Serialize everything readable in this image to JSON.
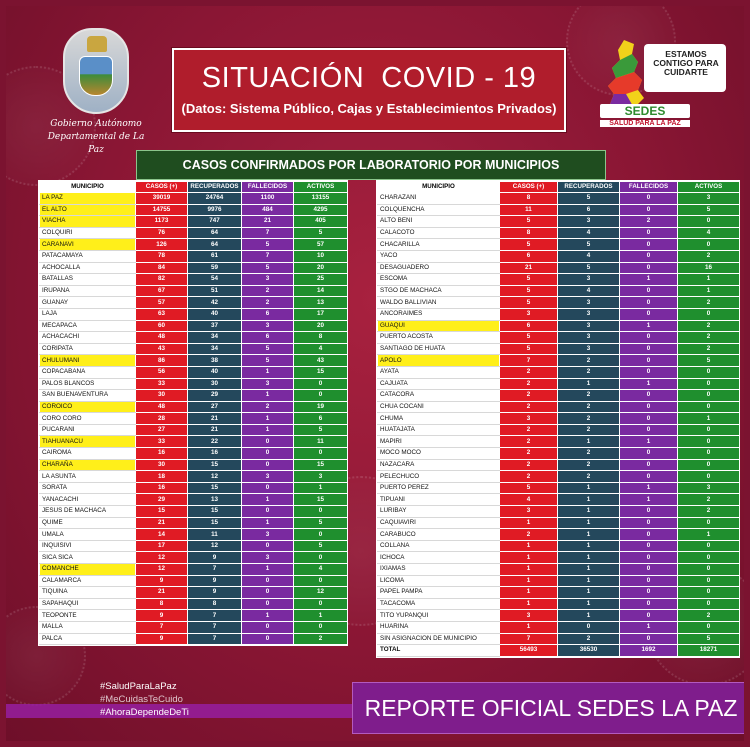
{
  "header": {
    "title": "SITUACIÓN  COVID - 19",
    "subtitle": "(Datos: Sistema Público, Cajas y Establecimientos Privados)",
    "subtitle_bar": "CASOS CONFIRMADOS POR LABORATORIO POR MUNICIPIOS"
  },
  "logo_left": {
    "line1": "Gobierno Autónomo",
    "line2": "Departamental de La Paz"
  },
  "logo_right": {
    "slogan": "ESTAMOS CONTIGO PARA CUIDARTE",
    "sedes": "SEDES",
    "sedes_sub": "SALUD PARA LA PAZ"
  },
  "columns": [
    "MUNICIPIO",
    "CASOS (+)",
    "RECUPERADOS",
    "FALLECIDOS",
    "ACTIVOS"
  ],
  "left_table": [
    {
      "m": "LA PAZ",
      "c": "39019",
      "r": "24764",
      "f": "1100",
      "a": "13155",
      "hl": true
    },
    {
      "m": "EL ALTO",
      "c": "14755",
      "r": "9976",
      "f": "484",
      "a": "4295",
      "hl": true
    },
    {
      "m": "VIACHA",
      "c": "1173",
      "r": "747",
      "f": "21",
      "a": "405",
      "hl": true
    },
    {
      "m": "COLQUIRI",
      "c": "76",
      "r": "64",
      "f": "7",
      "a": "5",
      "hl": false
    },
    {
      "m": "CARANAVI",
      "c": "126",
      "r": "64",
      "f": "5",
      "a": "57",
      "hl": true
    },
    {
      "m": "PATACAMAYA",
      "c": "78",
      "r": "61",
      "f": "7",
      "a": "10",
      "hl": false
    },
    {
      "m": "ACHOCALLA",
      "c": "84",
      "r": "59",
      "f": "5",
      "a": "20",
      "hl": false
    },
    {
      "m": "BATALLAS",
      "c": "82",
      "r": "54",
      "f": "3",
      "a": "25",
      "hl": false
    },
    {
      "m": "IRUPANA",
      "c": "67",
      "r": "51",
      "f": "2",
      "a": "14",
      "hl": false
    },
    {
      "m": "GUANAY",
      "c": "57",
      "r": "42",
      "f": "2",
      "a": "13",
      "hl": false
    },
    {
      "m": "LAJA",
      "c": "63",
      "r": "40",
      "f": "6",
      "a": "17",
      "hl": false
    },
    {
      "m": "MECAPACA",
      "c": "60",
      "r": "37",
      "f": "3",
      "a": "20",
      "hl": false
    },
    {
      "m": "ACHACACHI",
      "c": "48",
      "r": "34",
      "f": "6",
      "a": "8",
      "hl": false
    },
    {
      "m": "CORIPATA",
      "c": "43",
      "r": "34",
      "f": "5",
      "a": "4",
      "hl": false
    },
    {
      "m": "CHULUMANI",
      "c": "86",
      "r": "38",
      "f": "5",
      "a": "43",
      "hl": true
    },
    {
      "m": "COPACABANA",
      "c": "56",
      "r": "40",
      "f": "1",
      "a": "15",
      "hl": false
    },
    {
      "m": "PALOS BLANCOS",
      "c": "33",
      "r": "30",
      "f": "3",
      "a": "0",
      "hl": false
    },
    {
      "m": "SAN BUENAVENTURA",
      "c": "30",
      "r": "29",
      "f": "1",
      "a": "0",
      "hl": false
    },
    {
      "m": "COROICO",
      "c": "48",
      "r": "27",
      "f": "2",
      "a": "19",
      "hl": true
    },
    {
      "m": "CORO CORO",
      "c": "28",
      "r": "21",
      "f": "1",
      "a": "6",
      "hl": false
    },
    {
      "m": "PUCARANI",
      "c": "27",
      "r": "21",
      "f": "1",
      "a": "5",
      "hl": false
    },
    {
      "m": "TIAHUANACU",
      "c": "33",
      "r": "22",
      "f": "0",
      "a": "11",
      "hl": true
    },
    {
      "m": "CAIROMA",
      "c": "16",
      "r": "16",
      "f": "0",
      "a": "0",
      "hl": false
    },
    {
      "m": "CHARAÑA",
      "c": "30",
      "r": "15",
      "f": "0",
      "a": "15",
      "hl": true
    },
    {
      "m": "LA ASUNTA",
      "c": "18",
      "r": "12",
      "f": "3",
      "a": "3",
      "hl": false
    },
    {
      "m": "SORATA",
      "c": "16",
      "r": "15",
      "f": "0",
      "a": "1",
      "hl": false
    },
    {
      "m": "YANACACHI",
      "c": "29",
      "r": "13",
      "f": "1",
      "a": "15",
      "hl": false
    },
    {
      "m": "JESUS DE MACHACA",
      "c": "15",
      "r": "15",
      "f": "0",
      "a": "0",
      "hl": false
    },
    {
      "m": "QUIME",
      "c": "21",
      "r": "15",
      "f": "1",
      "a": "5",
      "hl": false
    },
    {
      "m": "UMALA",
      "c": "14",
      "r": "11",
      "f": "3",
      "a": "0",
      "hl": false
    },
    {
      "m": "INQUISIVI",
      "c": "17",
      "r": "12",
      "f": "0",
      "a": "5",
      "hl": false
    },
    {
      "m": "SICA SICA",
      "c": "12",
      "r": "9",
      "f": "3",
      "a": "0",
      "hl": false
    },
    {
      "m": "COMANCHE",
      "c": "12",
      "r": "7",
      "f": "1",
      "a": "4",
      "hl": true
    },
    {
      "m": "CALAMARCA",
      "c": "9",
      "r": "9",
      "f": "0",
      "a": "0",
      "hl": false
    },
    {
      "m": "TIQUINA",
      "c": "21",
      "r": "9",
      "f": "0",
      "a": "12",
      "hl": false
    },
    {
      "m": "SAPAHAQUI",
      "c": "8",
      "r": "8",
      "f": "0",
      "a": "0",
      "hl": false
    },
    {
      "m": "TEOPONTE",
      "c": "9",
      "r": "7",
      "f": "1",
      "a": "1",
      "hl": false
    },
    {
      "m": "MALLA",
      "c": "7",
      "r": "7",
      "f": "0",
      "a": "0",
      "hl": false
    },
    {
      "m": "PALCA",
      "c": "9",
      "r": "7",
      "f": "0",
      "a": "2",
      "hl": false
    }
  ],
  "right_table": [
    {
      "m": "CHARAZANI",
      "c": "8",
      "r": "5",
      "f": "0",
      "a": "3",
      "hl": false
    },
    {
      "m": "COLQUENCHA",
      "c": "11",
      "r": "6",
      "f": "0",
      "a": "5",
      "hl": false
    },
    {
      "m": "ALTO BENI",
      "c": "5",
      "r": "3",
      "f": "2",
      "a": "0",
      "hl": false
    },
    {
      "m": "CALACOTO",
      "c": "8",
      "r": "4",
      "f": "0",
      "a": "4",
      "hl": false
    },
    {
      "m": "CHACARILLA",
      "c": "5",
      "r": "5",
      "f": "0",
      "a": "0",
      "hl": false
    },
    {
      "m": "YACO",
      "c": "6",
      "r": "4",
      "f": "0",
      "a": "2",
      "hl": false
    },
    {
      "m": "DESAGUADERO",
      "c": "21",
      "r": "5",
      "f": "0",
      "a": "16",
      "hl": false
    },
    {
      "m": "ESCOMA",
      "c": "5",
      "r": "3",
      "f": "1",
      "a": "1",
      "hl": false
    },
    {
      "m": "STGO DE MACHACA",
      "c": "5",
      "r": "4",
      "f": "0",
      "a": "1",
      "hl": false
    },
    {
      "m": "WALDO BALLIVIAN",
      "c": "5",
      "r": "3",
      "f": "0",
      "a": "2",
      "hl": false
    },
    {
      "m": "ANCORAIMES",
      "c": "3",
      "r": "3",
      "f": "0",
      "a": "0",
      "hl": false
    },
    {
      "m": "GUAQUI",
      "c": "6",
      "r": "3",
      "f": "1",
      "a": "2",
      "hl": true
    },
    {
      "m": "PUERTO ACOSTA",
      "c": "5",
      "r": "3",
      "f": "0",
      "a": "2",
      "hl": false
    },
    {
      "m": "SANTIAGO DE HUATA",
      "c": "5",
      "r": "3",
      "f": "0",
      "a": "2",
      "hl": false
    },
    {
      "m": "APOLO",
      "c": "7",
      "r": "2",
      "f": "0",
      "a": "5",
      "hl": true
    },
    {
      "m": "AYATA",
      "c": "2",
      "r": "2",
      "f": "0",
      "a": "0",
      "hl": false
    },
    {
      "m": "CAJUATA",
      "c": "2",
      "r": "1",
      "f": "1",
      "a": "0",
      "hl": false
    },
    {
      "m": "CATACORA",
      "c": "2",
      "r": "2",
      "f": "0",
      "a": "0",
      "hl": false
    },
    {
      "m": "CHUA COCANI",
      "c": "2",
      "r": "2",
      "f": "0",
      "a": "0",
      "hl": false
    },
    {
      "m": "CHUMA",
      "c": "3",
      "r": "2",
      "f": "0",
      "a": "1",
      "hl": false
    },
    {
      "m": "HUATAJATA",
      "c": "2",
      "r": "2",
      "f": "0",
      "a": "0",
      "hl": false
    },
    {
      "m": "MAPIRI",
      "c": "2",
      "r": "1",
      "f": "1",
      "a": "0",
      "hl": false
    },
    {
      "m": "MOCO MOCO",
      "c": "2",
      "r": "2",
      "f": "0",
      "a": "0",
      "hl": false
    },
    {
      "m": "NAZACARA",
      "c": "2",
      "r": "2",
      "f": "0",
      "a": "0",
      "hl": false
    },
    {
      "m": "PELECHUCO",
      "c": "2",
      "r": "2",
      "f": "0",
      "a": "0",
      "hl": false
    },
    {
      "m": "PUERTO PEREZ",
      "c": "5",
      "r": "1",
      "f": "1",
      "a": "3",
      "hl": false
    },
    {
      "m": "TIPUANI",
      "c": "4",
      "r": "1",
      "f": "1",
      "a": "2",
      "hl": false
    },
    {
      "m": "LURIBAY",
      "c": "3",
      "r": "1",
      "f": "0",
      "a": "2",
      "hl": false
    },
    {
      "m": "CAQUIAVIRI",
      "c": "1",
      "r": "1",
      "f": "0",
      "a": "0",
      "hl": false
    },
    {
      "m": "CARABUCO",
      "c": "2",
      "r": "1",
      "f": "0",
      "a": "1",
      "hl": false
    },
    {
      "m": "COLLANA",
      "c": "1",
      "r": "1",
      "f": "0",
      "a": "0",
      "hl": false
    },
    {
      "m": "ICHOCA",
      "c": "1",
      "r": "1",
      "f": "0",
      "a": "0",
      "hl": false
    },
    {
      "m": "IXIAMAS",
      "c": "1",
      "r": "1",
      "f": "0",
      "a": "0",
      "hl": false
    },
    {
      "m": "LICOMA",
      "c": "1",
      "r": "1",
      "f": "0",
      "a": "0",
      "hl": false
    },
    {
      "m": "PAPEL PAMPA",
      "c": "1",
      "r": "1",
      "f": "0",
      "a": "0",
      "hl": false
    },
    {
      "m": "TACACOMA",
      "c": "1",
      "r": "1",
      "f": "0",
      "a": "0",
      "hl": false
    },
    {
      "m": "TITO YUPANQUI",
      "c": "3",
      "r": "1",
      "f": "0",
      "a": "2",
      "hl": false
    },
    {
      "m": "HUARINA",
      "c": "1",
      "r": "0",
      "f": "1",
      "a": "0",
      "hl": false
    },
    {
      "m": "SIN ASIGNACION DE MUNICIPIO",
      "c": "7",
      "r": "2",
      "f": "0",
      "a": "5",
      "hl": false
    },
    {
      "m": "TOTAL",
      "c": "56493",
      "r": "36530",
      "f": "1692",
      "a": "18271",
      "hl": false,
      "total": true
    }
  ],
  "footer": {
    "hashtags": [
      "#SaludParaLaPaz",
      "#MeCuidasTeCuido",
      "#AhoraDependeDeTi"
    ],
    "report": "REPORTE OFICIAL SEDES LA PAZ"
  },
  "colors": {
    "background": "#8a1634",
    "casos": "#e01b24",
    "recuperados": "#24485c",
    "fallecidos": "#7a2aa0",
    "activos": "#1f8f2e",
    "highlight": "#ffef1a",
    "report_bar": "#7f1d8c"
  }
}
